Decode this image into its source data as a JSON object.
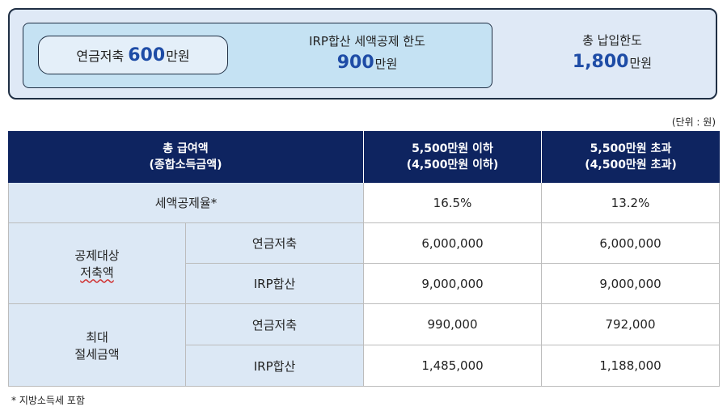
{
  "summary": {
    "pension": {
      "label": "연금저축 ",
      "amount": "600",
      "unit": "만원"
    },
    "irp": {
      "label": "IRP합산 세액공제 한도",
      "amount": "900",
      "unit": "만원"
    },
    "total": {
      "label": "총 납입한도",
      "amount": "1,800",
      "unit": "만원"
    }
  },
  "unit_note": "(단위 : 원)",
  "table": {
    "header": {
      "col1_line1": "총 급여액",
      "col1_line2": "(종합소득금액)",
      "col2_line1": "5,500만원 이하",
      "col2_line2": "(4,500만원 이하)",
      "col3_line1": "5,500만원 초과",
      "col3_line2": "(4,500만원 초과)"
    },
    "rate_row": {
      "label": "세액공제율*",
      "v1": "16.5%",
      "v2": "13.2%"
    },
    "group1": {
      "label_line1": "공제대상",
      "label_line2": "저축액",
      "rows": [
        {
          "label": "연금저축",
          "v1": "6,000,000",
          "v2": "6,000,000"
        },
        {
          "label": "IRP합산",
          "v1": "9,000,000",
          "v2": "9,000,000"
        }
      ]
    },
    "group2": {
      "label_line1": "최대",
      "label_line2": "절세금액",
      "rows": [
        {
          "label": "연금저축",
          "v1": "990,000",
          "v2": "792,000"
        },
        {
          "label": "IRP합산",
          "v1": "1,485,000",
          "v2": "1,188,000"
        }
      ]
    }
  },
  "footnote": "* 지방소득세 포함"
}
